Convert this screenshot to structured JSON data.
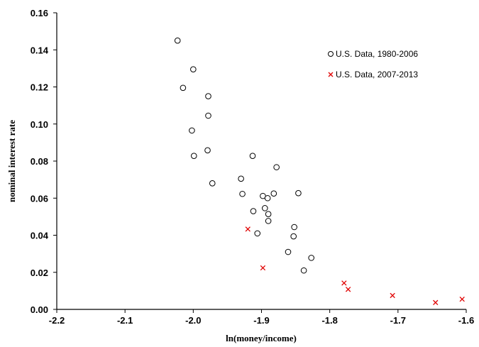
{
  "chart_data": {
    "type": "scatter",
    "title": "",
    "xlabel": "ln(money/income)",
    "ylabel": "nominal interest rate",
    "xlim": [
      -2.2,
      -1.6
    ],
    "ylim": [
      0,
      0.16
    ],
    "x_ticks": [
      -2.2,
      -2.1,
      -2.0,
      -1.9,
      -1.8,
      -1.7,
      -1.6
    ],
    "x_tick_labels": [
      "-2.2",
      "-2.1",
      "-2.0",
      "-1.9",
      "-1.8",
      "-1.7",
      "-1.6"
    ],
    "y_ticks": [
      0,
      0.02,
      0.04,
      0.06,
      0.08,
      0.1,
      0.12,
      0.14,
      0.16
    ],
    "y_tick_labels": [
      "0.00",
      "0.02",
      "0.04",
      "0.06",
      "0.08",
      "0.10",
      "0.12",
      "0.14",
      "0.16"
    ],
    "grid": false,
    "legend_position": "top-right",
    "series": [
      {
        "name": "U.S. Data, 1980-2006",
        "marker": "circle",
        "color": "#000000",
        "points": [
          [
            -2.023,
            0.145
          ],
          [
            -2.0,
            0.1295
          ],
          [
            -2.015,
            0.1195
          ],
          [
            -1.978,
            0.115
          ],
          [
            -1.978,
            0.1045
          ],
          [
            -2.002,
            0.0965
          ],
          [
            -1.999,
            0.0828
          ],
          [
            -1.979,
            0.0858
          ],
          [
            -1.972,
            0.068
          ],
          [
            -1.913,
            0.0828
          ],
          [
            -1.878,
            0.0767
          ],
          [
            -1.93,
            0.0705
          ],
          [
            -1.928,
            0.0623
          ],
          [
            -1.898,
            0.0612
          ],
          [
            -1.891,
            0.06
          ],
          [
            -1.882,
            0.0625
          ],
          [
            -1.846,
            0.0627
          ],
          [
            -1.912,
            0.053
          ],
          [
            -1.895,
            0.0546
          ],
          [
            -1.89,
            0.0514
          ],
          [
            -1.89,
            0.0477
          ],
          [
            -1.906,
            0.041
          ],
          [
            -1.852,
            0.0444
          ],
          [
            -1.853,
            0.0394
          ],
          [
            -1.861,
            0.031
          ],
          [
            -1.827,
            0.0278
          ],
          [
            -1.838,
            0.021
          ]
        ]
      },
      {
        "name": "U.S. Data, 2007-2013",
        "marker": "x",
        "color": "#e00000",
        "points": [
          [
            -1.92,
            0.0433
          ],
          [
            -1.898,
            0.0224
          ],
          [
            -1.779,
            0.0142
          ],
          [
            -1.773,
            0.0108
          ],
          [
            -1.708,
            0.0075
          ],
          [
            -1.645,
            0.0037
          ],
          [
            -1.606,
            0.0055
          ]
        ]
      }
    ]
  }
}
